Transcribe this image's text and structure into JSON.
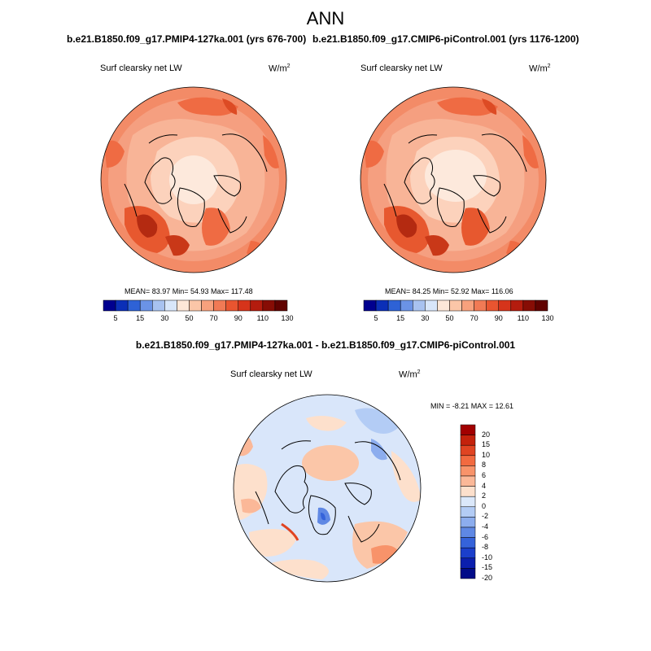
{
  "figure": {
    "title": "ANN"
  },
  "panel_left": {
    "case_title": "b.e21.B1850.f09_g17.PMIP4-127ka.001 (yrs 676-700)",
    "variable": "Surf clearsky net LW",
    "units_base": "W/m",
    "units_exp": "2",
    "stats_text": "MEAN=  83.97  Min=  54.93  Max= 117.48"
  },
  "panel_right": {
    "case_title": "b.e21.B1850.f09_g17.CMIP6-piControl.001 (yrs 1176-1200)",
    "variable": "Surf clearsky net LW",
    "units_base": "W/m",
    "units_exp": "2",
    "stats_text": "MEAN=  84.25  Min=  52.92  Max= 116.06"
  },
  "panel_diff": {
    "title": "b.e21.B1850.f09_g17.PMIP4-127ka.001 - b.e21.B1850.f09_g17.CMIP6-piControl.001",
    "variable": "Surf clearsky net LW",
    "units_base": "W/m",
    "units_exp": "2",
    "stats_text": "MIN =  -8.21 MAX =  12.61"
  },
  "colorbar_abs": {
    "colors": [
      "#00008f",
      "#0b2fb7",
      "#2e62d6",
      "#6b93e6",
      "#a8c2f0",
      "#d8e6fa",
      "#fde7d8",
      "#fbc6a8",
      "#f7a17d",
      "#f17a55",
      "#e95530",
      "#d6341b",
      "#b41c0e",
      "#870d05",
      "#610200"
    ],
    "labels": [
      "5",
      "15",
      "30",
      "50",
      "70",
      "90",
      "110",
      "130"
    ]
  },
  "colorbar_diff": {
    "colors": [
      "#a20000",
      "#c4220c",
      "#e04422",
      "#f26a40",
      "#f8936a",
      "#fbb898",
      "#fde0cc",
      "#dbe8fa",
      "#b3ccf5",
      "#8cadee",
      "#5f88e4",
      "#3563da",
      "#1b3fcb",
      "#0b1fae",
      "#010c88"
    ],
    "labels": [
      "20",
      "15",
      "10",
      "8",
      "6",
      "4",
      "2",
      "0",
      "-2",
      "-4",
      "-6",
      "-8",
      "-10",
      "-15",
      "-20"
    ]
  }
}
